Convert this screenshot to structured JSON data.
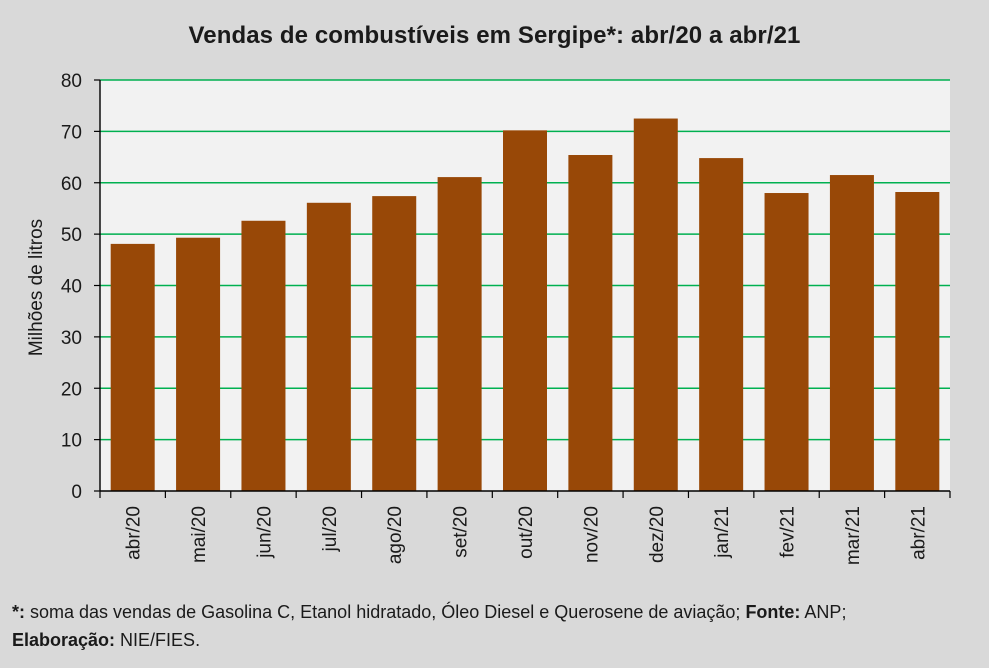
{
  "chart_data": {
    "type": "bar",
    "title": "Vendas de combustíveis em Sergipe*: abr/20 a abr/21",
    "xlabel": "",
    "ylabel": "Milhões de litros",
    "categories": [
      "abr/20",
      "mai/20",
      "jun/20",
      "jul/20",
      "ago/20",
      "set/20",
      "out/20",
      "nov/20",
      "dez/20",
      "jan/21",
      "fev/21",
      "mar/21",
      "abr/21"
    ],
    "values": [
      48.1,
      49.3,
      52.6,
      56.1,
      57.4,
      61.1,
      70.2,
      65.4,
      72.5,
      64.8,
      58.0,
      61.5,
      58.2
    ],
    "ylim": [
      0,
      80
    ],
    "yticks": [
      0,
      10,
      20,
      30,
      40,
      50,
      60,
      70,
      80
    ],
    "grid": true,
    "legend": "none",
    "colors": {
      "bar": "#984807",
      "grid": "#00b050",
      "plot_bg": "#f2f2f2",
      "page_bg": "#d9d9d9",
      "axis": "#000000"
    }
  },
  "footnote": {
    "asterisk_label": "*:",
    "text1": " soma das vendas de Gasolina C, Etanol hidratado, Óleo Diesel e Querosene de aviação; ",
    "source_label": "Fonte:",
    "source_value": " ANP;",
    "elab_label": "Elaboração:",
    "elab_value": " NIE/FIES."
  }
}
